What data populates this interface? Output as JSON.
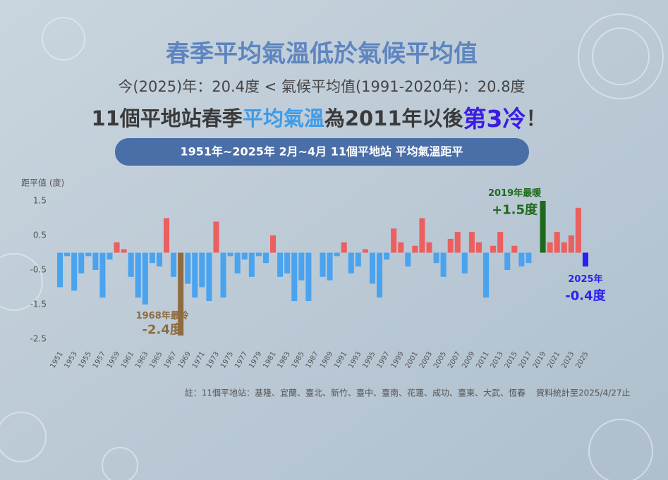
{
  "header": {
    "title": "春季平均氣溫低於氣候平均值",
    "subtitle": "今(2025)年：20.4度 < 氣候平均值(1991-2020年)：20.8度",
    "headline": [
      {
        "text": "11個平地站春季",
        "color": "#3a3a3a"
      },
      {
        "text": "平均氣溫",
        "color": "#3f9be8"
      },
      {
        "text": "為2011年以後",
        "color": "#3a3a3a"
      },
      {
        "text": "第3冷",
        "color": "#3a1de0"
      },
      {
        "text": "！",
        "color": "#3a3a3a"
      }
    ],
    "banner": "1951年~2025年  2月~4月  11個平地站 平均氣溫距平"
  },
  "chart_data": {
    "type": "bar",
    "y_label": "距平值 (度)",
    "x": [
      1951,
      1952,
      1953,
      1954,
      1955,
      1956,
      1957,
      1958,
      1959,
      1960,
      1961,
      1962,
      1963,
      1964,
      1965,
      1966,
      1967,
      1968,
      1969,
      1970,
      1971,
      1972,
      1973,
      1974,
      1975,
      1976,
      1977,
      1978,
      1979,
      1980,
      1981,
      1982,
      1983,
      1984,
      1985,
      1986,
      1987,
      1988,
      1989,
      1990,
      1991,
      1992,
      1993,
      1994,
      1995,
      1996,
      1997,
      1998,
      1999,
      2000,
      2001,
      2002,
      2003,
      2004,
      2005,
      2006,
      2007,
      2008,
      2009,
      2010,
      2011,
      2012,
      2013,
      2014,
      2015,
      2016,
      2017,
      2018,
      2019,
      2020,
      2021,
      2022,
      2023,
      2024,
      2025
    ],
    "values": [
      -1.0,
      -0.1,
      -1.1,
      -0.6,
      -0.1,
      -0.5,
      -1.3,
      -0.2,
      0.3,
      0.1,
      -0.7,
      -1.3,
      -1.5,
      -0.3,
      -0.4,
      1.0,
      -0.7,
      -2.4,
      -0.9,
      -1.3,
      -1.0,
      -1.4,
      0.9,
      -1.3,
      -0.1,
      -0.6,
      -0.2,
      -0.7,
      -0.1,
      -0.3,
      0.5,
      -0.7,
      -0.6,
      -1.4,
      -0.8,
      -1.4,
      0.0,
      -0.7,
      -0.8,
      -0.1,
      0.3,
      -0.6,
      -0.4,
      0.1,
      -0.9,
      -1.3,
      -0.2,
      0.7,
      0.3,
      -0.4,
      0.2,
      1.0,
      0.3,
      -0.3,
      -0.7,
      0.4,
      0.6,
      -0.6,
      0.6,
      0.3,
      -1.3,
      0.2,
      0.6,
      -0.5,
      0.2,
      -0.4,
      -0.3,
      0.0,
      1.5,
      0.3,
      0.6,
      0.3,
      0.5,
      1.3,
      -0.4
    ],
    "xlim": [
      1950.5,
      2025.5
    ],
    "xticks": [
      1951,
      1953,
      1955,
      1957,
      1959,
      1961,
      1963,
      1965,
      1967,
      1969,
      1971,
      1973,
      1975,
      1977,
      1979,
      1981,
      1983,
      1985,
      1987,
      1989,
      1991,
      1993,
      1995,
      1997,
      1999,
      2001,
      2003,
      2005,
      2007,
      2009,
      2011,
      2013,
      2015,
      2017,
      2019,
      2021,
      2023,
      2025
    ],
    "ylim": [
      -2.5,
      1.5
    ],
    "yticks": [
      1.5,
      0.5,
      -0.5,
      -1.5,
      -2.5
    ],
    "grid": false,
    "positive_color": "#ec5f5f",
    "negative_color": "#4aa3ef",
    "highlights": [
      {
        "x": 1968,
        "label": "1968年最冷",
        "value_label": "-2.4度",
        "color": "#8e6c40"
      },
      {
        "x": 2019,
        "label": "2019年最暖",
        "value_label": "+1.5度",
        "color": "#1d6a1d"
      },
      {
        "x": 2025,
        "label": "2025年",
        "value_label": "-0.4度",
        "color": "#2d1ff0"
      }
    ]
  },
  "footer": {
    "note": "註：11個平地站：基隆、宜蘭、臺北、新竹、臺中、臺南、花蓮、成功、臺東、大武、恆春",
    "source": "資料統計至2025/4/27止"
  }
}
